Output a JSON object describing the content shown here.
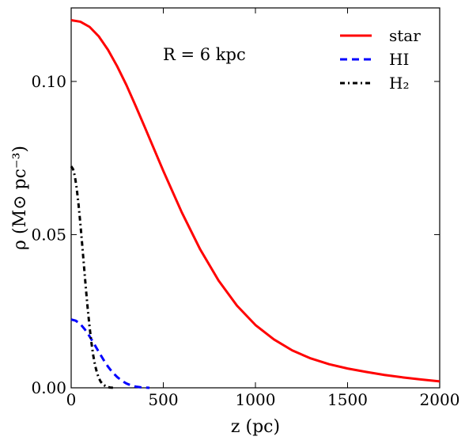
{
  "chart_data": {
    "type": "line",
    "title": "",
    "xlabel": "z (pc)",
    "ylabel": "ρ (M⊙ pc⁻³)",
    "xlim": [
      0,
      2000
    ],
    "ylim": [
      0,
      0.124
    ],
    "grid": false,
    "legend_position": "top-right",
    "x_ticks": [
      0,
      500,
      1000,
      1500,
      2000
    ],
    "x_tick_labels": [
      "0",
      "500",
      "1000",
      "1500",
      "2000"
    ],
    "y_ticks": [
      0,
      0.05,
      0.1
    ],
    "y_tick_labels": [
      "0.00",
      "0.05",
      "0.10"
    ],
    "annotation": "R = 6 kpc",
    "series": [
      {
        "name": "star",
        "color": "#ff0000",
        "dash": "solid",
        "points": [
          [
            0,
            0.12
          ],
          [
            50,
            0.1195
          ],
          [
            100,
            0.1178
          ],
          [
            150,
            0.1147
          ],
          [
            200,
            0.1103
          ],
          [
            250,
            0.1049
          ],
          [
            300,
            0.0988
          ],
          [
            350,
            0.092
          ],
          [
            400,
            0.085
          ],
          [
            450,
            0.0779
          ],
          [
            500,
            0.0708
          ],
          [
            600,
            0.0573
          ],
          [
            700,
            0.0452
          ],
          [
            800,
            0.035
          ],
          [
            900,
            0.0268
          ],
          [
            1000,
            0.0205
          ],
          [
            1100,
            0.0158
          ],
          [
            1200,
            0.0122
          ],
          [
            1300,
            0.0096
          ],
          [
            1400,
            0.0077
          ],
          [
            1500,
            0.0063
          ],
          [
            1600,
            0.0052
          ],
          [
            1700,
            0.0042
          ],
          [
            1800,
            0.0034
          ],
          [
            1900,
            0.0027
          ],
          [
            2000,
            0.0021
          ]
        ]
      },
      {
        "name": "HI",
        "color": "#0000ff",
        "dash": "dashed",
        "points": [
          [
            0,
            0.0223
          ],
          [
            25,
            0.0219
          ],
          [
            50,
            0.0208
          ],
          [
            75,
            0.019
          ],
          [
            100,
            0.0168
          ],
          [
            125,
            0.0143
          ],
          [
            150,
            0.0117
          ],
          [
            175,
            0.0092
          ],
          [
            200,
            0.0069
          ],
          [
            225,
            0.005
          ],
          [
            250,
            0.0035
          ],
          [
            275,
            0.0023
          ],
          [
            300,
            0.0014
          ],
          [
            325,
            0.0008
          ],
          [
            350,
            0.0004
          ],
          [
            375,
            0.0002
          ],
          [
            400,
            0.0001
          ],
          [
            425,
            0.0
          ]
        ]
      },
      {
        "name": "H₂",
        "color": "#000000",
        "dash": "dashdot",
        "points": [
          [
            0,
            0.0723
          ],
          [
            10,
            0.0714
          ],
          [
            20,
            0.0691
          ],
          [
            30,
            0.0651
          ],
          [
            40,
            0.0598
          ],
          [
            50,
            0.0535
          ],
          [
            60,
            0.0466
          ],
          [
            70,
            0.0394
          ],
          [
            80,
            0.0323
          ],
          [
            90,
            0.0257
          ],
          [
            100,
            0.0198
          ],
          [
            110,
            0.0147
          ],
          [
            120,
            0.0105
          ],
          [
            130,
            0.0073
          ],
          [
            140,
            0.0049
          ],
          [
            150,
            0.0032
          ],
          [
            160,
            0.002
          ],
          [
            175,
            0.001
          ],
          [
            190,
            0.0004
          ],
          [
            210,
            0.0001
          ],
          [
            230,
            0.0
          ]
        ]
      }
    ]
  }
}
